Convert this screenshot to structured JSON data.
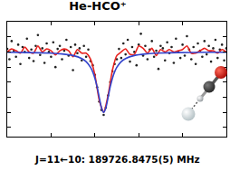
{
  "chart_data": {
    "type": "scatter",
    "title": "He-HCO⁺",
    "annotation": "J=11←10: 189726.8475(5) MHz",
    "xlim": [
      0,
      100
    ],
    "xticks": [
      0,
      20,
      40,
      60,
      80,
      100
    ],
    "ylim": [
      -1.4,
      0.5
    ],
    "yticks": [
      -1.25,
      -1,
      -0.75,
      -0.5,
      -0.25,
      0,
      0.25
    ],
    "grid": false,
    "tick_labels": false,
    "series": [
      {
        "type": "scatter",
        "marker": "circle",
        "color": "#222222",
        "x": [
          0,
          1,
          2,
          3,
          4,
          5,
          6,
          7,
          8,
          9,
          10,
          11,
          12,
          13,
          14,
          15,
          16,
          17,
          18,
          19,
          20,
          21,
          22,
          23,
          24,
          25,
          26,
          27,
          28,
          29,
          30,
          31,
          32,
          33,
          34,
          35,
          36,
          37,
          38,
          39,
          40,
          41,
          42,
          43,
          44,
          45,
          46,
          47,
          48,
          49,
          50,
          51,
          52,
          53,
          54,
          55,
          56,
          57,
          58,
          59,
          60,
          61,
          62,
          63,
          64,
          65,
          66,
          67,
          68,
          69,
          70,
          71,
          72,
          73,
          74,
          75,
          76,
          77,
          78,
          79,
          80,
          81,
          82,
          83,
          84,
          85,
          86,
          87,
          88,
          89,
          90,
          91,
          92,
          93,
          94,
          95,
          96,
          97,
          98,
          99,
          100
        ],
        "values": [
          0.05,
          -0.12,
          0.18,
          0.02,
          -0.08,
          0.12,
          -0.2,
          0.08,
          0.0,
          0.22,
          -0.1,
          0.04,
          -0.15,
          0.1,
          0.28,
          -0.05,
          0.06,
          -0.18,
          0.14,
          0.0,
          -0.08,
          0.16,
          -0.25,
          0.05,
          0.1,
          -0.12,
          0.02,
          0.2,
          -0.06,
          0.08,
          -0.3,
          0.12,
          -0.02,
          0.06,
          -0.14,
          0.1,
          -0.08,
          0.04,
          -0.15,
          -0.22,
          -0.38,
          -0.58,
          -0.82,
          -0.96,
          -1.04,
          -0.92,
          -0.72,
          -0.5,
          -0.32,
          -0.2,
          -0.12,
          0.05,
          -0.1,
          0.14,
          -0.04,
          0.2,
          -0.16,
          0.08,
          0.0,
          -0.22,
          0.12,
          0.3,
          -0.06,
          0.1,
          -0.12,
          0.04,
          0.18,
          -0.08,
          0.02,
          -0.28,
          0.1,
          0.06,
          -0.14,
          0.16,
          -0.02,
          0.08,
          -0.18,
          0.22,
          0.0,
          -0.1,
          0.12,
          -0.06,
          0.26,
          0.04,
          -0.12,
          0.08,
          -0.2,
          0.14,
          0.02,
          -0.08,
          0.18,
          -0.04,
          0.1,
          -0.16,
          0.06,
          0.2,
          -0.1,
          0.04,
          0.12,
          -0.14,
          0.06
        ]
      },
      {
        "type": "line",
        "line_style": "solid",
        "color": "#e8231f",
        "x": [
          0,
          2,
          4,
          6,
          8,
          10,
          12,
          14,
          16,
          18,
          20,
          22,
          24,
          26,
          28,
          30,
          32,
          34,
          36,
          38,
          40,
          42,
          44,
          46,
          48,
          50,
          52,
          54,
          56,
          58,
          60,
          62,
          64,
          66,
          68,
          70,
          72,
          74,
          76,
          78,
          80,
          82,
          84,
          86,
          88,
          90,
          92,
          94,
          96,
          98,
          100
        ],
        "values": [
          0.0,
          0.05,
          0.02,
          -0.02,
          0.08,
          0.0,
          -0.02,
          0.1,
          0.0,
          0.05,
          0.02,
          -0.05,
          0.02,
          0.05,
          0.02,
          -0.08,
          0.04,
          -0.02,
          -0.02,
          -0.12,
          -0.38,
          -0.8,
          -1.0,
          -0.72,
          -0.3,
          -0.06,
          0.0,
          0.05,
          -0.04,
          -0.04,
          0.1,
          0.06,
          -0.02,
          0.06,
          -0.06,
          0.04,
          0.0,
          0.04,
          0.0,
          0.02,
          0.04,
          0.1,
          -0.02,
          -0.02,
          0.02,
          0.06,
          0.02,
          0.02,
          -0.02,
          0.04,
          0.0
        ]
      },
      {
        "type": "line",
        "line_style": "solid",
        "color": "#3344cc",
        "x": [
          0,
          10,
          20,
          25,
          30,
          34,
          36,
          38,
          39,
          40,
          41,
          42,
          43,
          44,
          45,
          46,
          47,
          48,
          49,
          50,
          52,
          54,
          58,
          63,
          68,
          78,
          90,
          100
        ],
        "values": [
          -0.006,
          -0.01,
          -0.021,
          -0.033,
          -0.059,
          -0.109,
          -0.161,
          -0.254,
          -0.329,
          -0.434,
          -0.576,
          -0.754,
          -0.925,
          -1.0,
          -0.925,
          -0.754,
          -0.576,
          -0.434,
          -0.329,
          -0.254,
          -0.161,
          -0.109,
          -0.059,
          -0.033,
          -0.021,
          -0.01,
          -0.006,
          -0.004
        ]
      }
    ]
  }
}
